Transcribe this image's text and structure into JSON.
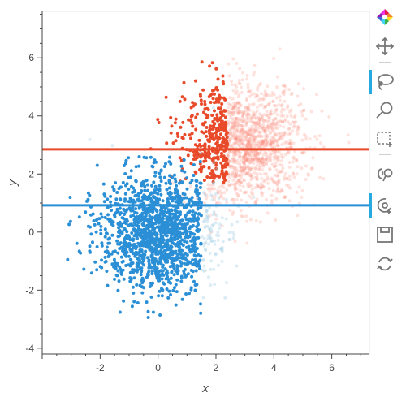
{
  "chart_data": {
    "type": "scatter",
    "title": "",
    "xlabel": "x",
    "ylabel": "y",
    "xlim": [
      -4.0,
      7.3
    ],
    "ylim": [
      -4.2,
      7.6
    ],
    "x_ticks": [
      -2,
      0,
      2,
      4,
      6
    ],
    "y_ticks": [
      -4,
      -2,
      0,
      2,
      4,
      6
    ],
    "grid": false,
    "legend": "none",
    "series": [
      {
        "color": "#fc8d7a",
        "opacity": 0.25,
        "cluster": {
          "center_x": 3.0,
          "center_y": 3.0,
          "spread_x": 1.0,
          "spread_y": 1.0,
          "approx_points": 1500
        }
      },
      {
        "color": "#9ecae1",
        "opacity": 0.35,
        "cluster": {
          "center_x": 0.0,
          "center_y": 0.0,
          "spread_x": 1.0,
          "spread_y": 1.0,
          "approx_points": 1500
        }
      },
      {
        "color": "#e84a2a",
        "opacity": 1.0,
        "selection": {
          "x_max": 2.4,
          "y_min": 1.7
        }
      },
      {
        "color": "#2b8fd6",
        "opacity": 1.0,
        "selection": {
          "x_max": 1.5,
          "y_max": 2.7
        }
      }
    ],
    "hlines": [
      {
        "y": 2.85,
        "color": "#e84a2a"
      },
      {
        "y": 0.92,
        "color": "#2b8fd6"
      }
    ]
  },
  "toolbar": {
    "tools": [
      {
        "icon": "bokeh-logo-icon",
        "active": false
      },
      {
        "icon": "pan-icon",
        "active": false
      },
      {
        "icon": "lasso-select-icon",
        "active": true
      },
      {
        "icon": "zoom-in-icon",
        "active": false
      },
      {
        "icon": "box-select-icon",
        "active": false
      },
      {
        "icon": "wheel-zoom-icon",
        "active": false
      },
      {
        "icon": "hover-icon",
        "active": true
      },
      {
        "icon": "save-icon",
        "active": false
      },
      {
        "icon": "reset-icon",
        "active": false
      }
    ]
  }
}
